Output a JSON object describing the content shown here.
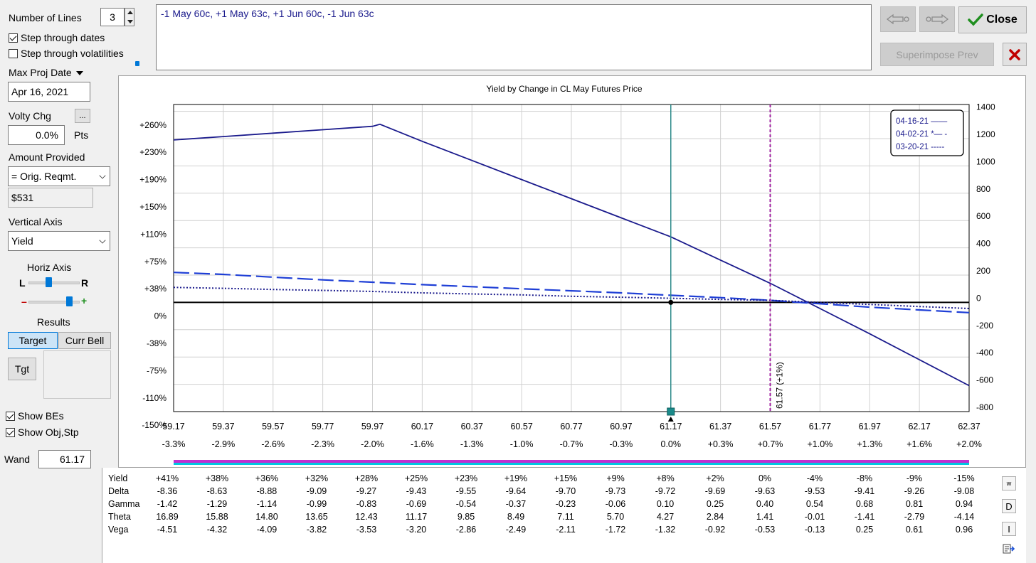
{
  "lines_count": {
    "label": "Number of Lines",
    "value": "3"
  },
  "positions_text": "-1 May 60c, +1 May 63c, +1 Jun 60c, -1 Jun 63c",
  "nav": {
    "back_icon": "arrow-left-icon",
    "forward_icon": "arrow-right-icon"
  },
  "close_label": "Close",
  "superimpose_label": "Superimpose Prev",
  "step_dates": {
    "label": "Step through dates",
    "checked": true
  },
  "step_vols": {
    "label": "Step through volatilities",
    "checked": false
  },
  "max_proj_date": {
    "label": "Max Proj Date",
    "value": "Apr 16, 2021"
  },
  "volty_chg": {
    "label": "Volty Chg",
    "button": "...",
    "value": "0.0%",
    "unit": "Pts"
  },
  "amount": {
    "label": "Amount Provided",
    "selected": "= Orig. Reqmt.",
    "value": "$531"
  },
  "vertical_axis": {
    "label": "Vertical Axis",
    "selected": "Yield"
  },
  "horiz_axis": {
    "label": "Horiz Axis",
    "left": "L",
    "right": "R",
    "minus": "–",
    "plus": "+",
    "lr_fraction": 0.36,
    "zoom_fraction": 0.78
  },
  "results": {
    "label": "Results",
    "target": "Target",
    "curr_bell": "Curr Bell",
    "tgt": "Tgt"
  },
  "show_bes": {
    "label": "Show BEs",
    "checked": true
  },
  "show_obj": {
    "label": "Show Obj,Stp",
    "checked": true
  },
  "wand": {
    "label": "Wand",
    "value": "61.17"
  },
  "colors": {
    "accent": "#0078d7",
    "line": "#1a1a8c",
    "dashed": "#1f3fd6",
    "marker": "#a020a0",
    "cursor": "#2e8b8b",
    "green": "#1f8f1f",
    "red": "#c00000"
  },
  "chart_data": {
    "type": "line",
    "title": "Yield by Change in CL May Futures Price",
    "x": [
      59.17,
      59.37,
      59.57,
      59.77,
      59.97,
      60.17,
      60.37,
      60.57,
      60.77,
      60.97,
      61.17,
      61.37,
      61.57,
      61.77,
      61.97,
      62.17,
      62.37
    ],
    "x_labels": [
      "59.17",
      "59.37",
      "59.57",
      "59.77",
      "59.97",
      "60.17",
      "60.37",
      "60.57",
      "60.77",
      "60.97",
      "61.17",
      "61.37",
      "61.57",
      "61.77",
      "61.97",
      "62.17",
      "62.37"
    ],
    "x_pct_labels": [
      "-3.3%",
      "-2.9%",
      "-2.6%",
      "-2.3%",
      "-2.0%",
      "-1.6%",
      "-1.3%",
      "-1.0%",
      "-0.7%",
      "-0.3%",
      "0.0%",
      "+0.3%",
      "+0.7%",
      "+1.0%",
      "+1.3%",
      "+1.6%",
      "+2.0%"
    ],
    "ylim": [
      -800,
      1450
    ],
    "y_ticks_left": [
      {
        "v": 1300,
        "label": "+260%"
      },
      {
        "v": 1100,
        "label": "+230%"
      },
      {
        "v": 900,
        "label": "+190%"
      },
      {
        "v": 700,
        "label": "+150%"
      },
      {
        "v": 500,
        "label": "+110%"
      },
      {
        "v": 300,
        "label": "+75%"
      },
      {
        "v": 100,
        "label": "+38%"
      },
      {
        "v": -100,
        "label": "0%"
      },
      {
        "v": -300,
        "label": "-38%"
      },
      {
        "v": -500,
        "label": "-75%"
      },
      {
        "v": -700,
        "label": "-110%"
      },
      {
        "v": -900,
        "label": "-150%"
      }
    ],
    "y_ticks_right": [
      1400,
      1200,
      1000,
      800,
      600,
      400,
      200,
      0,
      -200,
      -400,
      -600,
      -800
    ],
    "series": [
      {
        "name": "04-16-21",
        "style": "solid",
        "legend": "04-16-21 ——",
        "points": [
          [
            59.17,
            1190
          ],
          [
            59.37,
            1215
          ],
          [
            59.57,
            1240
          ],
          [
            59.77,
            1265
          ],
          [
            59.97,
            1290
          ],
          [
            60.0,
            1305
          ],
          [
            60.17,
            1180
          ],
          [
            60.37,
            1040
          ],
          [
            60.57,
            900
          ],
          [
            60.77,
            760
          ],
          [
            60.97,
            620
          ],
          [
            61.17,
            480
          ],
          [
            61.37,
            310
          ],
          [
            61.57,
            140
          ],
          [
            61.77,
            -45
          ],
          [
            61.97,
            -230
          ],
          [
            62.17,
            -420
          ],
          [
            62.37,
            -610
          ]
        ]
      },
      {
        "name": "04-02-21",
        "style": "dashed",
        "legend": "04-02-21 *— -",
        "points": [
          [
            59.17,
            220
          ],
          [
            59.37,
            205
          ],
          [
            59.57,
            185
          ],
          [
            59.77,
            165
          ],
          [
            59.97,
            148
          ],
          [
            60.17,
            130
          ],
          [
            60.37,
            115
          ],
          [
            60.57,
            100
          ],
          [
            60.77,
            85
          ],
          [
            60.97,
            70
          ],
          [
            61.17,
            52
          ],
          [
            61.37,
            35
          ],
          [
            61.57,
            15
          ],
          [
            61.77,
            -10
          ],
          [
            61.97,
            -35
          ],
          [
            62.17,
            -55
          ],
          [
            62.37,
            -75
          ]
        ]
      },
      {
        "name": "03-20-21",
        "style": "dotted",
        "legend": "03-20-21 -----",
        "points": [
          [
            59.17,
            110
          ],
          [
            59.37,
            103
          ],
          [
            59.57,
            95
          ],
          [
            59.77,
            88
          ],
          [
            59.97,
            80
          ],
          [
            60.17,
            70
          ],
          [
            60.37,
            62
          ],
          [
            60.57,
            55
          ],
          [
            60.77,
            45
          ],
          [
            60.97,
            38
          ],
          [
            61.17,
            30
          ],
          [
            61.37,
            22
          ],
          [
            61.57,
            15
          ],
          [
            61.77,
            0
          ],
          [
            61.97,
            -15
          ],
          [
            62.17,
            -30
          ],
          [
            62.37,
            -45
          ]
        ]
      }
    ],
    "wand_x": 61.17,
    "breakeven_x": 61.57,
    "breakeven_label": "61.57 (+1%)"
  },
  "greeks": {
    "rows": [
      {
        "label": "Yield",
        "values": [
          "+41%",
          "+38%",
          "+36%",
          "+32%",
          "+28%",
          "+25%",
          "+23%",
          "+19%",
          "+15%",
          "+9%",
          "+8%",
          "+2%",
          "0%",
          "-4%",
          "-8%",
          "-9%",
          "-15%"
        ]
      },
      {
        "label": "Delta",
        "values": [
          "-8.36",
          "-8.63",
          "-8.88",
          "-9.09",
          "-9.27",
          "-9.43",
          "-9.55",
          "-9.64",
          "-9.70",
          "-9.73",
          "-9.72",
          "-9.69",
          "-9.63",
          "-9.53",
          "-9.41",
          "-9.26",
          "-9.08"
        ]
      },
      {
        "label": "Gamma",
        "values": [
          "-1.42",
          "-1.29",
          "-1.14",
          "-0.99",
          "-0.83",
          "-0.69",
          "-0.54",
          "-0.37",
          "-0.23",
          "-0.06",
          "0.10",
          "0.25",
          "0.40",
          "0.54",
          "0.68",
          "0.81",
          "0.94"
        ]
      },
      {
        "label": "Theta",
        "values": [
          "16.89",
          "15.88",
          "14.80",
          "13.65",
          "12.43",
          "11.17",
          "9.85",
          "8.49",
          "7.11",
          "5.70",
          "4.27",
          "2.84",
          "1.41",
          "-0.01",
          "-1.41",
          "-2.79",
          "-4.14"
        ]
      },
      {
        "label": "Vega",
        "values": [
          "-4.51",
          "-4.32",
          "-4.09",
          "-3.82",
          "-3.53",
          "-3.20",
          "-2.86",
          "-2.49",
          "-2.11",
          "-1.72",
          "-1.32",
          "-0.92",
          "-0.53",
          "-0.13",
          "0.25",
          "0.61",
          "0.96"
        ]
      }
    ],
    "side_buttons": {
      "w": "w",
      "d": "D",
      "i": "I"
    }
  }
}
